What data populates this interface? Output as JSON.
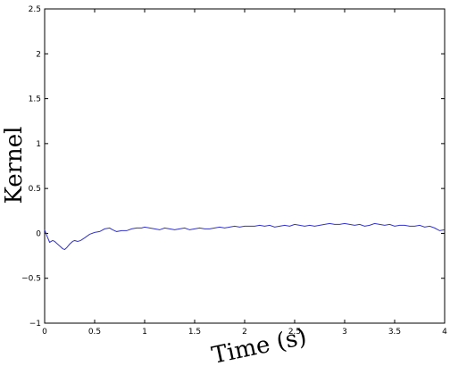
{
  "chart_data": {
    "type": "line",
    "title": "",
    "xlabel": "Time (s)",
    "ylabel": "Kernel",
    "xlim": [
      0,
      4
    ],
    "ylim": [
      -1,
      2.5
    ],
    "grid": false,
    "x_ticks": [
      "0",
      "0.5",
      "1",
      "1.5",
      "2",
      "2.5",
      "3",
      "3.5",
      "4"
    ],
    "y_ticks": [
      "−1",
      "−0.5",
      "0",
      "0.5",
      "1",
      "1.5",
      "2",
      "2.5"
    ],
    "series": [
      {
        "color": "#3333cc",
        "x": [
          0,
          0.02,
          0.05,
          0.08,
          0.1,
          0.12,
          0.15,
          0.18,
          0.2,
          0.22,
          0.25,
          0.28,
          0.3,
          0.33,
          0.36,
          0.4,
          0.45,
          0.5,
          0.55,
          0.6,
          0.65,
          0.68,
          0.72,
          0.77,
          0.82,
          0.87,
          0.92,
          0.97,
          1.0,
          1.05,
          1.1,
          1.15,
          1.2,
          1.25,
          1.3,
          1.35,
          1.4,
          1.45,
          1.5,
          1.55,
          1.6,
          1.65,
          1.7,
          1.75,
          1.8,
          1.85,
          1.9,
          1.95,
          2.0,
          2.05,
          2.1,
          2.15,
          2.2,
          2.25,
          2.3,
          2.35,
          2.4,
          2.45,
          2.5,
          2.55,
          2.6,
          2.65,
          2.7,
          2.75,
          2.8,
          2.85,
          2.9,
          2.95,
          3.0,
          3.05,
          3.1,
          3.15,
          3.2,
          3.25,
          3.3,
          3.35,
          3.4,
          3.45,
          3.5,
          3.55,
          3.6,
          3.65,
          3.7,
          3.75,
          3.8,
          3.85,
          3.9,
          3.95,
          4.0
        ],
        "y": [
          0.04,
          -0.02,
          -0.1,
          -0.08,
          -0.09,
          -0.11,
          -0.14,
          -0.17,
          -0.18,
          -0.16,
          -0.12,
          -0.09,
          -0.08,
          -0.09,
          -0.08,
          -0.05,
          -0.01,
          0.01,
          0.02,
          0.05,
          0.06,
          0.04,
          0.02,
          0.03,
          0.03,
          0.05,
          0.06,
          0.06,
          0.07,
          0.06,
          0.05,
          0.04,
          0.06,
          0.05,
          0.04,
          0.05,
          0.06,
          0.04,
          0.05,
          0.06,
          0.05,
          0.05,
          0.06,
          0.07,
          0.06,
          0.07,
          0.08,
          0.07,
          0.08,
          0.08,
          0.08,
          0.09,
          0.08,
          0.09,
          0.07,
          0.08,
          0.09,
          0.08,
          0.1,
          0.09,
          0.08,
          0.09,
          0.08,
          0.09,
          0.1,
          0.11,
          0.1,
          0.1,
          0.11,
          0.1,
          0.09,
          0.1,
          0.08,
          0.09,
          0.11,
          0.1,
          0.09,
          0.1,
          0.08,
          0.09,
          0.09,
          0.08,
          0.08,
          0.09,
          0.07,
          0.08,
          0.06,
          0.03,
          0.04
        ]
      }
    ]
  }
}
